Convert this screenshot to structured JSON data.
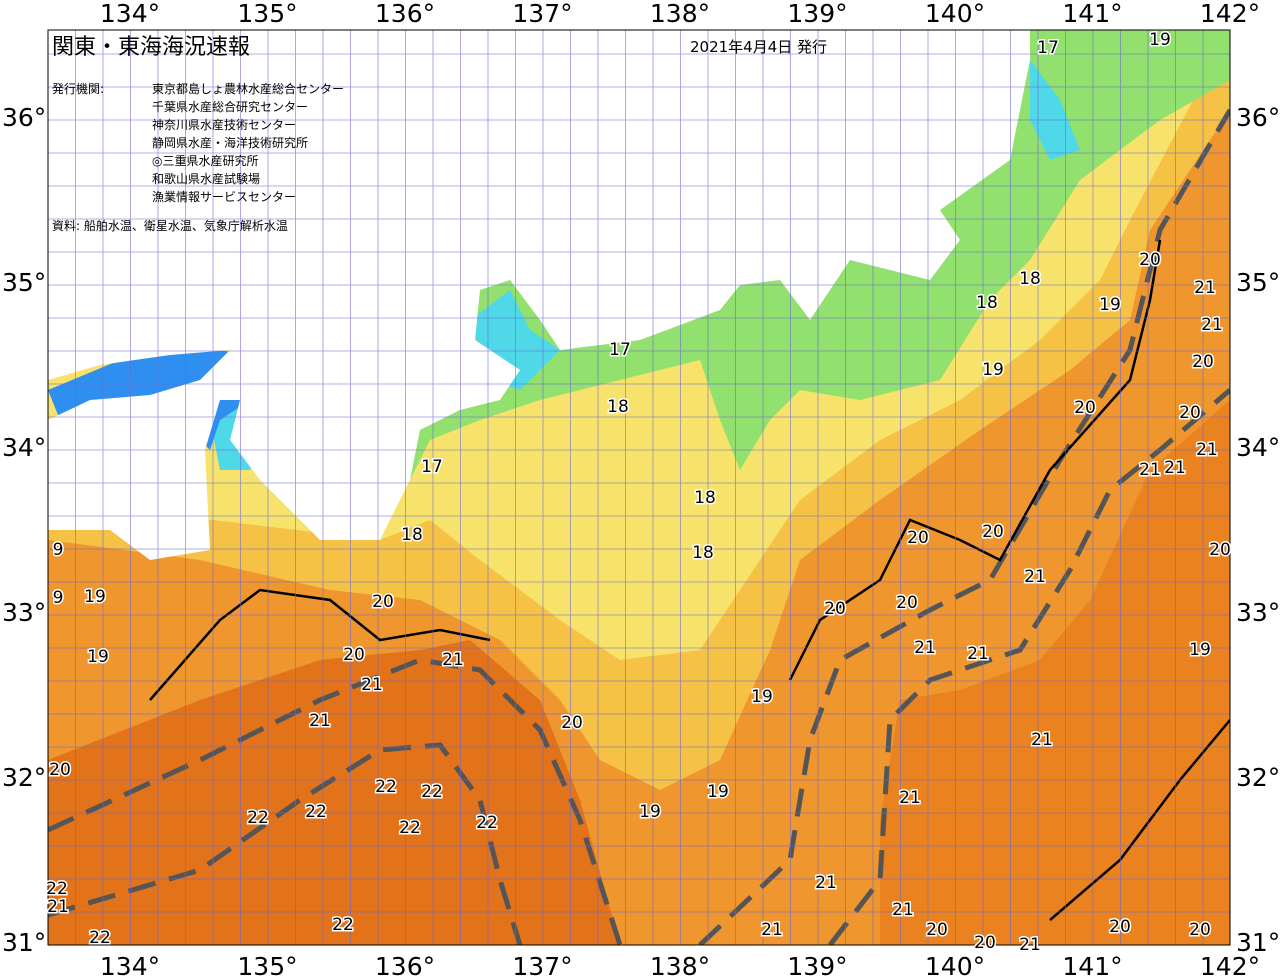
{
  "header": {
    "title": "関東・東海海況速報",
    "date": "2021年4月4日 発行"
  },
  "issuers": {
    "label": "発行機関:",
    "items": [
      "東京都島しょ農林水産総合センター",
      "千葉県水産総合研究センター",
      "神奈川県水産技術センター",
      "静岡県水産・海洋技術研究所",
      "◎三重県水産研究所",
      "和歌山県水産試験場",
      "漁業情報サービスセンター"
    ]
  },
  "source": "資料: 船舶水温、衛星水温、気象庁解析水温",
  "longitude_labels": [
    "134°",
    "135°",
    "136°",
    "137°",
    "138°",
    "139°",
    "140°",
    "141°",
    "142°"
  ],
  "latitude_labels": [
    "36°",
    "35°",
    "34°",
    "33°",
    "32°",
    "31°"
  ],
  "contour_labels": [
    "17",
    "17",
    "17",
    "19",
    "18",
    "18",
    "18",
    "18",
    "18",
    "18",
    "19",
    "19",
    "20",
    "21",
    "21",
    "20",
    "20",
    "20",
    "21",
    "21",
    "21",
    "20",
    "20",
    "20",
    "21",
    "20",
    "20",
    "21",
    "21",
    "19",
    "21",
    "19",
    "20",
    "19",
    "19",
    "21",
    "21",
    "21",
    "21",
    "20",
    "20",
    "20",
    "21",
    "20",
    "20",
    "20",
    "21",
    "21",
    "21",
    "19",
    "19",
    "20",
    "22",
    "22",
    "22",
    "22",
    "22",
    "22",
    "22",
    "22",
    "22",
    "21",
    "9",
    "9"
  ]
}
